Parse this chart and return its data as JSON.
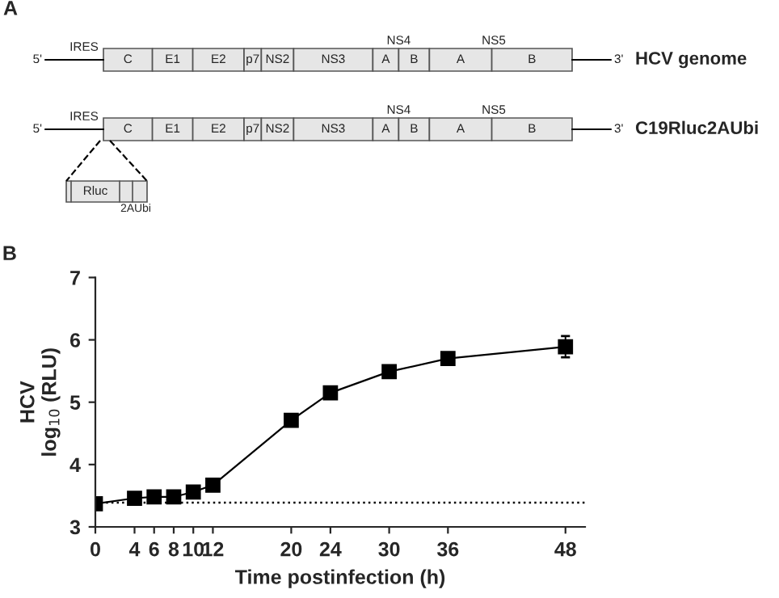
{
  "chart_data": [
    {
      "type": "other",
      "title": "A",
      "annotations": [
        "5'",
        "IRES",
        "C",
        "E1",
        "E2",
        "p7",
        "NS2",
        "NS3",
        "A",
        "B",
        "A",
        "B",
        "NS4",
        "NS5",
        "3'",
        "HCV genome",
        "5'",
        "IRES",
        "C",
        "E1",
        "E2",
        "p7",
        "NS2",
        "NS3",
        "A",
        "B",
        "A",
        "B",
        "NS4",
        "NS5",
        "3'",
        "C19Rluc2AUbi",
        "Rluc",
        "2AUbi"
      ]
    },
    {
      "type": "line",
      "title": "B",
      "xlabel": "Time postinfection (h)",
      "ylabel": "HCV\nlog$_{10}$ (RLU)",
      "x": [
        0,
        4,
        6,
        8,
        10,
        12,
        20,
        24,
        30,
        36,
        48
      ],
      "series": [
        {
          "color": "#000000",
          "values": [
            3.37,
            3.46,
            3.48,
            3.48,
            3.56,
            3.67,
            4.71,
            5.15,
            5.49,
            5.7,
            5.89
          ],
          "errors": [
            null,
            null,
            null,
            null,
            null,
            null,
            null,
            null,
            null,
            0.06,
            0.17
          ]
        }
      ],
      "xlim": [
        0,
        50
      ],
      "xticks": [
        0,
        4,
        6,
        8,
        10,
        12,
        20,
        24,
        30,
        36,
        48
      ],
      "ylim": [
        3,
        7
      ],
      "yticks": [
        3,
        4,
        5,
        6,
        7
      ],
      "ref_lines": [
        {
          "axis": "y",
          "value": 3.39,
          "color": "#000000",
          "line_style": "dotted"
        }
      ],
      "marker": "square",
      "line_style": "solid",
      "grid": false,
      "legend": false
    }
  ]
}
